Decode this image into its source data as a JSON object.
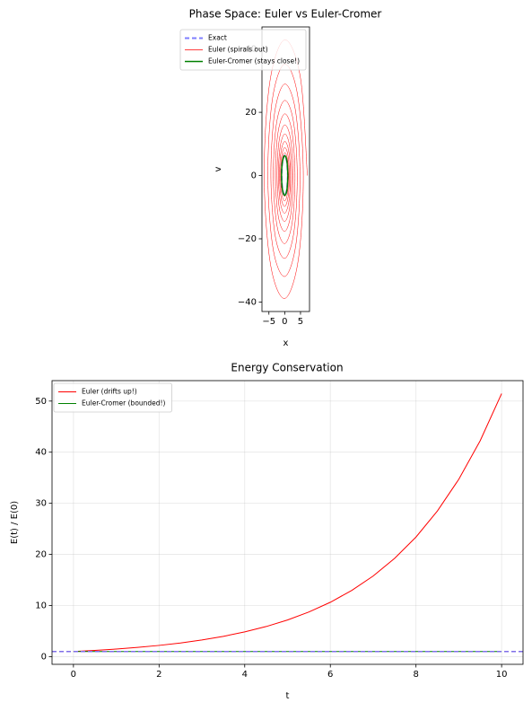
{
  "chart_data": [
    {
      "type": "line",
      "title": "Phase Space: Euler vs Euler-Cromer",
      "xlabel": "x",
      "ylabel": "v",
      "xlim": [
        -7.2,
        7.85
      ],
      "ylim": [
        -43,
        47
      ],
      "xticks": [
        {
          "value": -5,
          "label": "−5"
        },
        0,
        5
      ],
      "yticks": [
        {
          "value": -40,
          "label": "−40"
        },
        {
          "value": -20,
          "label": "−20"
        },
        0,
        20,
        40
      ],
      "grid": false,
      "legend_loc": "upper right",
      "series": [
        {
          "name": "Exact",
          "color": "#7f7fff",
          "linestyle": "dashed",
          "linewidth": 2,
          "x": [
            1,
            0.71,
            0,
            -0.71,
            -1,
            -0.71,
            0,
            0.71,
            1
          ],
          "values": [
            0,
            -4.44,
            -6.28,
            -4.44,
            0,
            4.44,
            6.28,
            4.44,
            0
          ]
        },
        {
          "name": "Euler (spirals out)",
          "color": "#ff0000",
          "linestyle": "solid",
          "linewidth": 0.5,
          "x": [
            1,
            0.72,
            0,
            -0.76,
            -1.1,
            -0.8,
            0,
            0.84,
            1.22,
            0.88,
            0,
            -0.93,
            -1.34,
            -0.97,
            0,
            1.02,
            1.48,
            1.07,
            0,
            -1.13,
            -1.64,
            -1.19,
            0,
            1.25,
            1.81,
            1.31,
            0,
            -1.37,
            -1.99,
            -1.44,
            0,
            1.52,
            2.2,
            1.59,
            0,
            -1.67,
            -2.43,
            -1.76,
            0,
            1.85,
            2.68,
            1.94,
            0,
            -2.04,
            -2.96,
            -2.14,
            0,
            2.25,
            3.26,
            2.36,
            0,
            -2.48,
            -3.6,
            -2.61,
            0,
            2.74,
            3.97,
            2.88,
            0,
            -3.02,
            -4.38,
            -3.18,
            0,
            3.34,
            4.84,
            3.51,
            0,
            -3.68,
            -5.34,
            -3.87,
            0,
            4.06,
            5.89,
            4.27,
            0,
            -4.48,
            -6.5,
            -4.71,
            0,
            4.95,
            7.17
          ],
          "values": [
            0,
            -4.55,
            -6.6,
            -4.78,
            0,
            5.03,
            7.28,
            5.28,
            0,
            -5.55,
            -8.04,
            -5.83,
            0,
            6.12,
            8.87,
            6.43,
            0,
            -6.75,
            -9.79,
            -7.09,
            0,
            7.45,
            10.8,
            7.83,
            0,
            -8.22,
            -11.92,
            -8.64,
            0,
            9.08,
            13.16,
            9.53,
            0,
            -10.02,
            -14.52,
            -10.52,
            0,
            11.05,
            16.02,
            11.61,
            0,
            -12.2,
            -17.68,
            -12.81,
            0,
            13.46,
            19.51,
            14.14,
            0,
            -14.85,
            -21.53,
            -15.6,
            0,
            16.39,
            23.76,
            17.22,
            0,
            -18.09,
            -26.22,
            -19.0,
            0,
            19.96,
            28.93,
            20.97,
            0,
            -22.03,
            -31.93,
            -23.14,
            0,
            24.31,
            35.24,
            25.54,
            0,
            -26.82,
            -38.88,
            -28.18,
            0,
            29.6,
            42.91,
            31.1,
            0
          ]
        },
        {
          "name": "Euler-Cromer (stays close!)",
          "color": "#008000",
          "linestyle": "solid",
          "linewidth": 1.5,
          "x": [
            1,
            0.71,
            0,
            -0.71,
            -1,
            -0.71,
            0,
            0.71,
            1
          ],
          "values": [
            0,
            -4.44,
            -6.28,
            -4.44,
            0,
            4.44,
            6.28,
            4.44,
            0
          ]
        }
      ]
    },
    {
      "type": "line",
      "title": "Energy Conservation",
      "xlabel": "t",
      "ylabel": "E(t) / E(0)",
      "xlim": [
        -0.5,
        10.5
      ],
      "ylim": [
        -1.5,
        54
      ],
      "xticks": [
        0,
        2,
        4,
        6,
        8,
        10
      ],
      "yticks": [
        0,
        10,
        20,
        30,
        40,
        50
      ],
      "grid": true,
      "legend_loc": "upper left",
      "hlines": [
        {
          "value": 1,
          "color": "#7f6fe8",
          "linestyle": "dashed",
          "linewidth": 1.5
        }
      ],
      "series": [
        {
          "name": "Euler (drifts up!)",
          "color": "#ff0000",
          "linestyle": "solid",
          "linewidth": 1,
          "x": [
            0,
            0.5,
            1,
            1.5,
            2,
            2.5,
            3,
            3.5,
            4,
            4.5,
            5,
            5.5,
            6,
            6.5,
            7,
            7.5,
            8,
            8.5,
            9,
            9.5,
            10
          ],
          "values": [
            1,
            1.218,
            1.483,
            1.806,
            2.199,
            2.678,
            3.262,
            3.972,
            4.837,
            5.891,
            7.174,
            8.737,
            10.64,
            12.96,
            15.78,
            19.22,
            23.4,
            28.5,
            34.7,
            42.26,
            51.47
          ]
        },
        {
          "name": "Euler-Cromer (bounded!)",
          "color": "#008000",
          "linestyle": "solid",
          "linewidth": 1,
          "x": [
            0,
            2,
            4,
            6,
            8,
            10
          ],
          "values": [
            1,
            1,
            1,
            1,
            1,
            1
          ]
        }
      ]
    }
  ]
}
